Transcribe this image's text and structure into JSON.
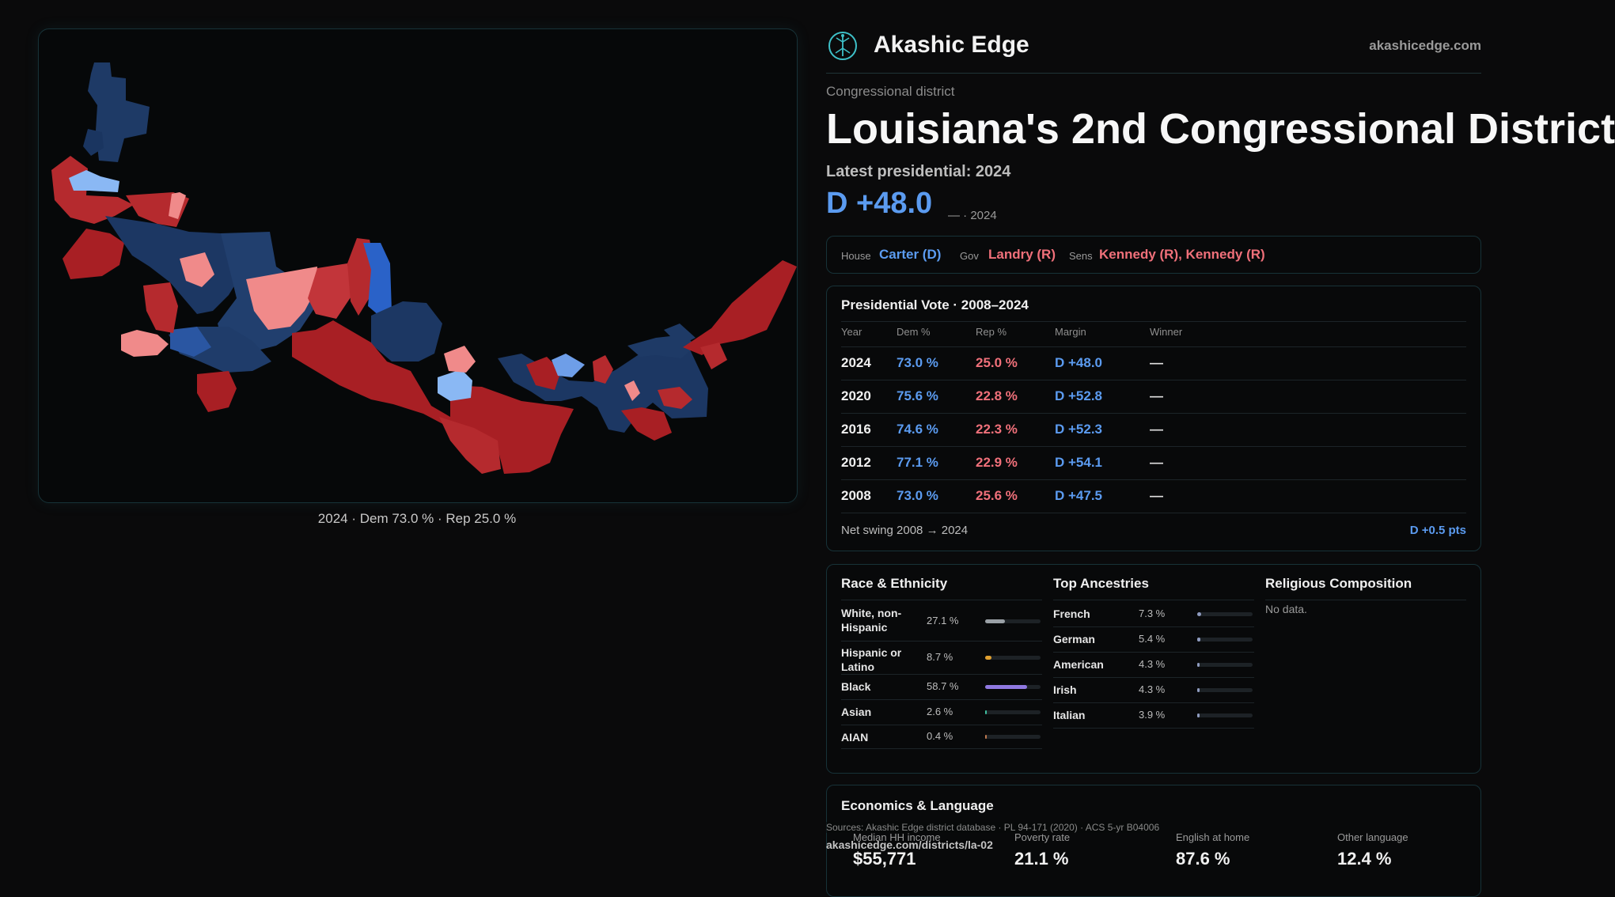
{
  "brand": {
    "name": "Akashic Edge",
    "url": "akashicedge.com",
    "logo_icon": "tree-of-life-icon"
  },
  "kicker": "Congressional district",
  "title": "Louisiana's 2nd Congressional District",
  "latest_label": "Latest presidential: 2024",
  "headline_margin": "D +48.0",
  "headline_sub": "— · 2024",
  "map_caption": "2024 · Dem 73.0 % · Rep 25.0 %",
  "reps": {
    "house_label": "House",
    "house_value": "Carter (D)",
    "gov_label": "Gov",
    "gov_value": "Landry (R)",
    "sens_label": "Sens",
    "sens_value": "Kennedy (R), Kennedy (R)"
  },
  "presidential": {
    "title": "Presidential Vote · 2008–2024",
    "headers": [
      "Year",
      "Dem %",
      "Rep %",
      "Margin",
      "Winner"
    ],
    "rows": [
      {
        "year": "2024",
        "dem": "73.0 %",
        "rep": "25.0 %",
        "margin": "D +48.0",
        "winner": "—"
      },
      {
        "year": "2020",
        "dem": "75.6 %",
        "rep": "22.8 %",
        "margin": "D +52.8",
        "winner": "—"
      },
      {
        "year": "2016",
        "dem": "74.6 %",
        "rep": "22.3 %",
        "margin": "D +52.3",
        "winner": "—"
      },
      {
        "year": "2012",
        "dem": "77.1 %",
        "rep": "22.9 %",
        "margin": "D +54.1",
        "winner": "—"
      },
      {
        "year": "2008",
        "dem": "73.0 %",
        "rep": "25.6 %",
        "margin": "D +47.5",
        "winner": "—"
      }
    ],
    "swing_label": "Net swing 2008 → 2024",
    "swing_value": "D +0.5 pts"
  },
  "race": {
    "title": "Race & Ethnicity",
    "rows": [
      {
        "label": "White, non-Hispanic",
        "value": "27.1 %",
        "pct": 27.1,
        "color": "#9aa0a6"
      },
      {
        "label": "Hispanic or Latino",
        "value": "8.7 %",
        "pct": 8.7,
        "color": "#e0a030"
      },
      {
        "label": "Black",
        "value": "58.7 %",
        "pct": 58.7,
        "color": "#8f78e0"
      },
      {
        "label": "Asian",
        "value": "2.6 %",
        "pct": 2.6,
        "color": "#3fc0a0"
      },
      {
        "label": "AIAN",
        "value": "0.4 %",
        "pct": 0.4,
        "color": "#c07a50"
      }
    ]
  },
  "ancestry": {
    "title": "Top Ancestries",
    "rows": [
      {
        "label": "French",
        "value": "7.3 %",
        "pct": 7.3
      },
      {
        "label": "German",
        "value": "5.4 %",
        "pct": 5.4
      },
      {
        "label": "American",
        "value": "4.3 %",
        "pct": 4.3
      },
      {
        "label": "Irish",
        "value": "4.3 %",
        "pct": 4.3
      },
      {
        "label": "Italian",
        "value": "3.9 %",
        "pct": 3.9
      }
    ]
  },
  "religion": {
    "title": "Religious Composition",
    "empty": "No data."
  },
  "economics": {
    "title": "Economics & Language",
    "labels": [
      "Median HH income",
      "Poverty rate",
      "English at home",
      "Other language"
    ],
    "values": [
      "$55,771",
      "21.1 %",
      "87.6 %",
      "12.4 %"
    ]
  },
  "source_text": "Sources: Akashic Edge district database · PL 94-171 (2020) · ACS 5-yr B04006",
  "source_url": "akashicedge.com/districts/la-02",
  "colors": {
    "dem": "#5b9bf0",
    "rep": "#f0707a"
  }
}
